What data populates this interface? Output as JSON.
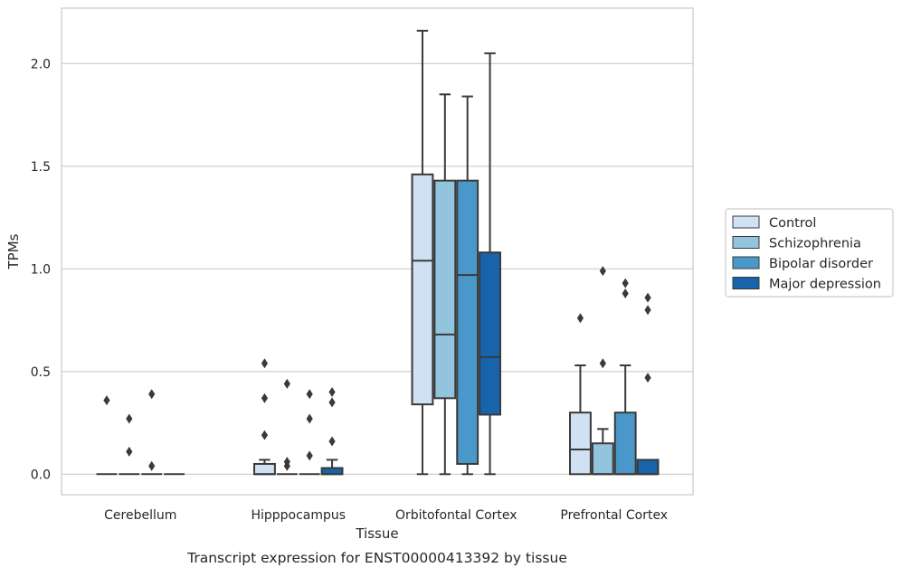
{
  "chart_data": {
    "type": "boxplot",
    "title": "Transcript expression for ENST00000413392 by tissue",
    "xlabel": "Tissue",
    "ylabel": "TPMs",
    "ylim": [
      -0.1,
      2.27
    ],
    "yticks": [
      0.0,
      0.5,
      1.0,
      1.5,
      2.0
    ],
    "ytick_labels": [
      "0.0",
      "0.5",
      "1.0",
      "1.5",
      "2.0"
    ],
    "grid": "horizontal",
    "legend_position": "outside-right",
    "categories": [
      "Cerebellum",
      "Hipppocampus",
      "Orbitofontal Cortex",
      "Prefrontal Cortex"
    ],
    "series": [
      {
        "name": "Control",
        "color": "#cfe1f2",
        "boxes": [
          {
            "q1": 0.0,
            "median": 0.0,
            "q3": 0.0,
            "whisker_low": 0.0,
            "whisker_high": 0.0,
            "outliers": [
              0.36
            ]
          },
          {
            "q1": 0.0,
            "median": 0.0,
            "q3": 0.05,
            "whisker_low": 0.0,
            "whisker_high": 0.07,
            "outliers": [
              0.54,
              0.37,
              0.19
            ]
          },
          {
            "q1": 0.34,
            "median": 1.04,
            "q3": 1.46,
            "whisker_low": 0.0,
            "whisker_high": 2.16,
            "outliers": []
          },
          {
            "q1": 0.0,
            "median": 0.12,
            "q3": 0.3,
            "whisker_low": 0.0,
            "whisker_high": 0.53,
            "outliers": [
              0.76
            ]
          }
        ]
      },
      {
        "name": "Schizophrenia",
        "color": "#93c4de",
        "boxes": [
          {
            "q1": 0.0,
            "median": 0.0,
            "q3": 0.0,
            "whisker_low": 0.0,
            "whisker_high": 0.0,
            "outliers": [
              0.27,
              0.11
            ]
          },
          {
            "q1": 0.0,
            "median": 0.0,
            "q3": 0.0,
            "whisker_low": 0.0,
            "whisker_high": 0.0,
            "outliers": [
              0.44,
              0.06,
              0.04
            ]
          },
          {
            "q1": 0.37,
            "median": 0.68,
            "q3": 1.43,
            "whisker_low": 0.0,
            "whisker_high": 1.85,
            "outliers": []
          },
          {
            "q1": 0.0,
            "median": 0.0,
            "q3": 0.15,
            "whisker_low": 0.0,
            "whisker_high": 0.22,
            "outliers": [
              0.99,
              0.54
            ]
          }
        ]
      },
      {
        "name": "Bipolar disorder",
        "color": "#4a98c9",
        "boxes": [
          {
            "q1": 0.0,
            "median": 0.0,
            "q3": 0.0,
            "whisker_low": 0.0,
            "whisker_high": 0.0,
            "outliers": [
              0.39,
              0.04
            ]
          },
          {
            "q1": 0.0,
            "median": 0.0,
            "q3": 0.0,
            "whisker_low": 0.0,
            "whisker_high": 0.0,
            "outliers": [
              0.39,
              0.27,
              0.09
            ]
          },
          {
            "q1": 0.05,
            "median": 0.97,
            "q3": 1.43,
            "whisker_low": 0.0,
            "whisker_high": 1.84,
            "outliers": []
          },
          {
            "q1": 0.0,
            "median": 0.0,
            "q3": 0.3,
            "whisker_low": 0.0,
            "whisker_high": 0.53,
            "outliers": [
              0.93,
              0.88
            ]
          }
        ]
      },
      {
        "name": "Major depression",
        "color": "#1764ab",
        "boxes": [
          {
            "q1": 0.0,
            "median": 0.0,
            "q3": 0.0,
            "whisker_low": 0.0,
            "whisker_high": 0.0,
            "outliers": []
          },
          {
            "q1": 0.0,
            "median": 0.0,
            "q3": 0.03,
            "whisker_low": 0.0,
            "whisker_high": 0.07,
            "outliers": [
              0.4,
              0.35,
              0.16
            ]
          },
          {
            "q1": 0.29,
            "median": 0.57,
            "q3": 1.08,
            "whisker_low": 0.0,
            "whisker_high": 2.05,
            "outliers": []
          },
          {
            "q1": 0.0,
            "median": 0.0,
            "q3": 0.07,
            "whisker_low": 0.0,
            "whisker_high": 0.07,
            "outliers": [
              0.86,
              0.8,
              0.47
            ]
          }
        ]
      }
    ]
  }
}
